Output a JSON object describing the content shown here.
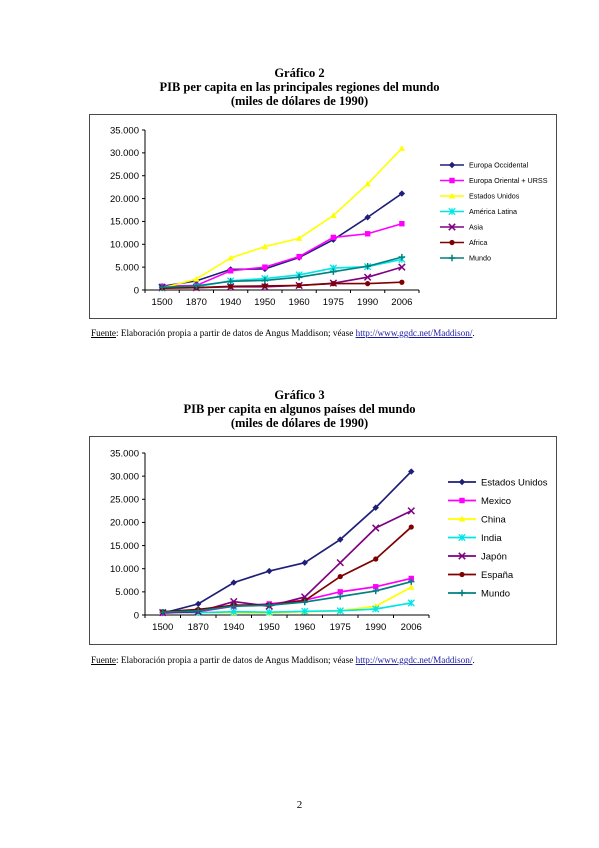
{
  "figures": [
    {
      "heading": {
        "number": "Gráfico 2",
        "title": "PIB per capita en las principales regiones del mundo",
        "units": "(miles de dólares de 1990)"
      },
      "source": {
        "label": "Fuente",
        "text": ": Elaboración propia a partir de datos de Angus Maddison; véase ",
        "link": "http://www.ggdc.net/Maddison/",
        "end": "."
      }
    },
    {
      "heading": {
        "number": "Gráfico 3",
        "title": "PIB per capita en algunos países del mundo",
        "units": "(miles de dólares de 1990)"
      },
      "source": {
        "label": "Fuente",
        "text": ": Elaboración propia a partir de datos de Angus Maddison; véase ",
        "link": "http://www.ggdc.net/Maddison/",
        "end": "."
      }
    }
  ],
  "page_number": "2",
  "chart_data": [
    {
      "type": "line",
      "categories": [
        "1500",
        "1870",
        "1940",
        "1950",
        "1960",
        "1975",
        "1990",
        "2006"
      ],
      "y_ticks": [
        "0",
        "5.000",
        "10.000",
        "15.000",
        "20.000",
        "25.000",
        "30.000",
        "35.000"
      ],
      "ylim": [
        0,
        35000
      ],
      "grid": false,
      "legend_position": "right",
      "series": [
        {
          "name": "Europa Occidental",
          "color": "#1f1f7a",
          "marker": "diamond",
          "values": [
            800,
            2000,
            4500,
            4600,
            7100,
            11000,
            15900,
            21100
          ]
        },
        {
          "name": "Europa Oriental + URSS",
          "color": "#ff00ff",
          "marker": "square",
          "values": [
            800,
            1000,
            4200,
            5000,
            7300,
            11500,
            12300,
            14500
          ]
        },
        {
          "name": "Estados Unidos",
          "color": "#ffff00",
          "marker": "triangle",
          "values": [
            400,
            2400,
            7000,
            9500,
            11300,
            16300,
            23200,
            31000
          ]
        },
        {
          "name": "América Latina",
          "color": "#00e5e5",
          "marker": "cross",
          "values": [
            400,
            700,
            2000,
            2500,
            3300,
            4800,
            5100,
            6700
          ]
        },
        {
          "name": "Asia",
          "color": "#800080",
          "marker": "x",
          "values": [
            600,
            500,
            700,
            700,
            1000,
            1500,
            2800,
            5000
          ]
        },
        {
          "name": "Africa",
          "color": "#800000",
          "marker": "circle",
          "values": [
            400,
            500,
            800,
            900,
            1000,
            1400,
            1400,
            1700
          ]
        },
        {
          "name": "Mundo",
          "color": "#008080",
          "marker": "plus",
          "values": [
            600,
            900,
            1900,
            2100,
            2800,
            4000,
            5200,
            7200
          ]
        }
      ]
    },
    {
      "type": "line",
      "categories": [
        "1500",
        "1870",
        "1940",
        "1950",
        "1960",
        "1975",
        "1990",
        "2006"
      ],
      "y_ticks": [
        "0",
        "5.000",
        "10.000",
        "15.000",
        "20.000",
        "25.000",
        "30.000",
        "35.000"
      ],
      "ylim": [
        0,
        35000
      ],
      "grid": false,
      "legend_position": "right",
      "series": [
        {
          "name": "Estados Unidos",
          "color": "#1f1f7a",
          "marker": "diamond",
          "values": [
            400,
            2400,
            7000,
            9500,
            11300,
            16300,
            23200,
            31000
          ]
        },
        {
          "name": "Mexico",
          "color": "#ff00ff",
          "marker": "square",
          "values": [
            400,
            700,
            1900,
            2400,
            3200,
            5000,
            6100,
            7900
          ]
        },
        {
          "name": "China",
          "color": "#ffff00",
          "marker": "triangle",
          "values": [
            600,
            500,
            500,
            400,
            700,
            900,
            1900,
            6000
          ]
        },
        {
          "name": "India",
          "color": "#00e5e5",
          "marker": "cross",
          "values": [
            600,
            500,
            700,
            600,
            800,
            900,
            1300,
            2600
          ]
        },
        {
          "name": "Japón",
          "color": "#800080",
          "marker": "x",
          "values": [
            500,
            700,
            2900,
            1900,
            3900,
            11300,
            18800,
            22500
          ]
        },
        {
          "name": "España",
          "color": "#800000",
          "marker": "circle",
          "values": [
            700,
            1200,
            2100,
            2200,
            3100,
            8300,
            12100,
            19000
          ]
        },
        {
          "name": "Mundo",
          "color": "#008080",
          "marker": "plus",
          "values": [
            600,
            900,
            1900,
            2100,
            2800,
            4000,
            5200,
            7200
          ]
        }
      ]
    }
  ]
}
